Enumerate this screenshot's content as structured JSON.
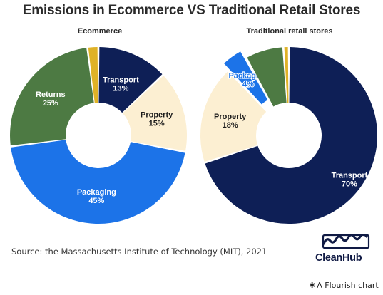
{
  "title": "Emissions in Ecommerce VS Traditional Retail Stores",
  "source": "Source: the Massachusetts Institute of Technology (MIT), 2021",
  "brand": {
    "name": "CleanHub",
    "logo_icon": "waves-icon"
  },
  "footer": {
    "icon": "asterisk-icon",
    "text": "A Flourish chart"
  },
  "colors": {
    "transport": "#0e1f56",
    "property": "#fcefd2",
    "packaging": "#1c73e8",
    "returns": "#4d7a43",
    "other": "#dfb227"
  },
  "chart_data": [
    {
      "type": "pie",
      "title": "Ecommerce",
      "donut": true,
      "slices": [
        {
          "label": "Transport",
          "value": 13,
          "display": "13%",
          "color_key": "transport"
        },
        {
          "label": "Property",
          "value": 15,
          "display": "15%",
          "color_key": "property"
        },
        {
          "label": "Packaging",
          "value": 45,
          "display": "45%",
          "color_key": "packaging"
        },
        {
          "label": "Returns",
          "value": 25,
          "display": "25%",
          "color_key": "returns"
        },
        {
          "label": "",
          "value": 2,
          "display": "",
          "color_key": "other"
        }
      ]
    },
    {
      "type": "pie",
      "title": "Traditional retail stores",
      "donut": true,
      "slices": [
        {
          "label": "Transport",
          "value": 70,
          "display": "70%",
          "color_key": "transport"
        },
        {
          "label": "Property",
          "value": 18,
          "display": "18%",
          "color_key": "property"
        },
        {
          "label": "Packaging",
          "value": 4,
          "display": "4%",
          "color_key": "packaging",
          "exploded": true
        },
        {
          "label": "",
          "value": 7,
          "display": "",
          "color_key": "returns"
        },
        {
          "label": "",
          "value": 1,
          "display": "",
          "color_key": "other"
        }
      ]
    }
  ]
}
